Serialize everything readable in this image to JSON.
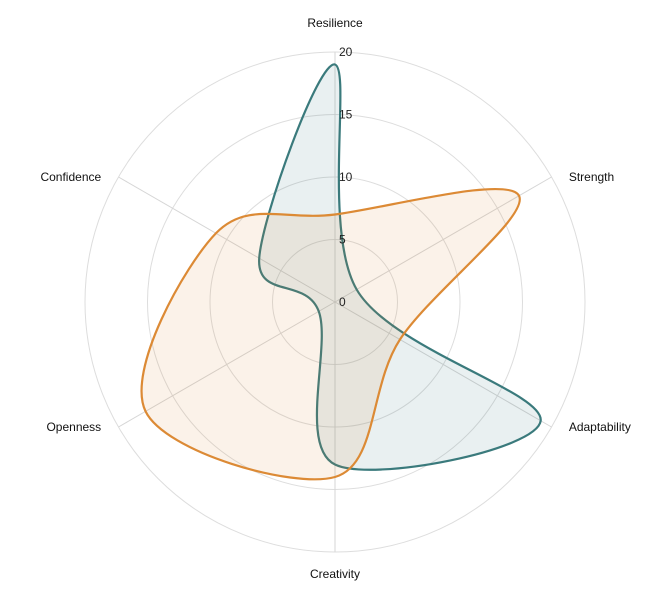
{
  "chart_data": {
    "type": "radar",
    "axes": [
      "Resilience",
      "Strength",
      "Adaptability",
      "Creativity",
      "Openness",
      "Confidence"
    ],
    "rlim": [
      0,
      20
    ],
    "ticks": [
      0,
      5,
      10,
      15,
      20
    ],
    "tick_labels": [
      "0",
      "5",
      "10",
      "15",
      "20"
    ],
    "grid": true,
    "series": [
      {
        "values": [
          19,
          2,
          19,
          13,
          1.5,
          7
        ],
        "color": "#3a7a7c",
        "fill": "#3a7a7c"
      },
      {
        "values": [
          7,
          17,
          6,
          14,
          17.5,
          11
        ],
        "color": "#dc8a35",
        "fill": "#dc8a35"
      }
    ]
  }
}
